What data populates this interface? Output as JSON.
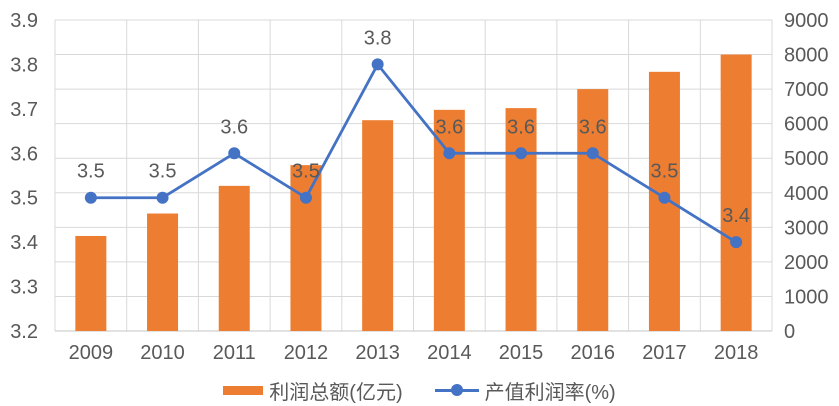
{
  "chart_data": {
    "type": "combo-bar-line",
    "title": "",
    "categories": [
      "2009",
      "2010",
      "2011",
      "2012",
      "2013",
      "2014",
      "2015",
      "2016",
      "2017",
      "2018"
    ],
    "series": [
      {
        "name": "利润总额(亿元)",
        "type": "bar",
        "axis": "right",
        "color": "#ED7D31",
        "values": [
          2750,
          3400,
          4200,
          4800,
          6100,
          6400,
          6450,
          7000,
          7500,
          8000
        ]
      },
      {
        "name": "产值利润率(%)",
        "type": "line",
        "axis": "left",
        "color": "#4472C4",
        "values": [
          3.5,
          3.5,
          3.6,
          3.5,
          3.8,
          3.6,
          3.6,
          3.6,
          3.5,
          3.4
        ],
        "data_labels": [
          "3.5",
          "3.5",
          "3.6",
          "3.5",
          "3.8",
          "3.6",
          "3.6",
          "3.6",
          "3.5",
          "3.4"
        ]
      }
    ],
    "left_axis": {
      "min": 3.2,
      "max": 3.9,
      "ticks": [
        "3.9",
        "3.8",
        "3.7",
        "3.6",
        "3.5",
        "3.4",
        "3.3",
        "3.2"
      ]
    },
    "right_axis": {
      "min": 0,
      "max": 9000,
      "ticks": [
        "9000",
        "8000",
        "7000",
        "6000",
        "5000",
        "4000",
        "3000",
        "2000",
        "1000",
        "0"
      ]
    },
    "grid": true,
    "legend_position": "bottom"
  },
  "colors": {
    "bar": "#ED7D31",
    "line": "#4472C4",
    "grid": "#D9D9D9",
    "axis_line": "#C6C6C6",
    "text": "#595959",
    "background": "#FFFFFF"
  }
}
